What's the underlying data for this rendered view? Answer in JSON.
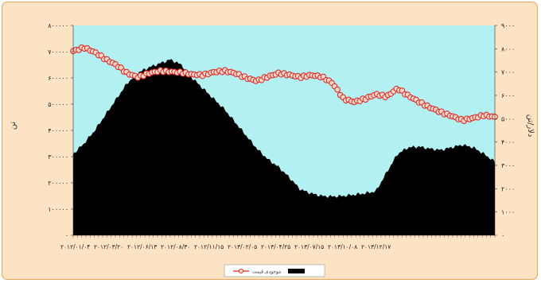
{
  "chart_data": {
    "type": "area",
    "left_axis": {
      "label": "تن",
      "ylim": [
        0,
        800000
      ],
      "ticks": [
        "۰",
        "۱۰۰۰۰۰",
        "۲۰۰۰۰۰",
        "۳۰۰۰۰۰",
        "۴۰۰۰۰۰",
        "۵۰۰۰۰۰",
        "۶۰۰۰۰۰",
        "۷۰۰۰۰۰",
        "۸۰۰۰۰۰"
      ],
      "tick_values": [
        0,
        100000,
        200000,
        300000,
        400000,
        500000,
        600000,
        700000,
        800000
      ]
    },
    "right_axis": {
      "label": "دلار/تن",
      "ylim": [
        0,
        9000
      ],
      "ticks": [
        "۰",
        "۱۰۰۰",
        "۲۰۰۰",
        "۳۰۰۰",
        "۴۰۰۰",
        "۵۰۰۰",
        "۶۰۰۰",
        "۷۰۰۰",
        "۸۰۰۰",
        "۹۰۰۰"
      ],
      "tick_values": [
        0,
        1000,
        2000,
        3000,
        4000,
        5000,
        6000,
        7000,
        8000,
        9000
      ]
    },
    "x_tick_labels": [
      "۲۰۱۲/۰۱/۰۴",
      "۲۰۱۲/۰۳/۲۰",
      "۲۰۱۲/۰۶/۱۳",
      "۲۰۱۲/۰۸/۳۰",
      "۲۰۱۲/۱۱/۱۵",
      "۲۰۱۳/۰۲/۰۵",
      "۲۰۱۳/۰۴/۲۵",
      "۲۰۱۳/۰۷/۱۵",
      "۲۰۱۳/۱۰/۰۸",
      "۲۰۱۳/۱۲/۱۷"
    ],
    "series": [
      {
        "name": "موجودی",
        "kind": "area",
        "axis": "left",
        "color": "#000000",
        "values": [
          310000,
          350000,
          400000,
          460000,
          520000,
          580000,
          620000,
          640000,
          655000,
          670000,
          650000,
          600000,
          560000,
          520000,
          480000,
          430000,
          380000,
          330000,
          290000,
          260000,
          220000,
          175000,
          160000,
          150000,
          148000,
          150000,
          155000,
          160000,
          168000,
          240000,
          310000,
          335000,
          338000,
          330000,
          325000,
          335000,
          345000,
          335000,
          310000,
          280000
        ]
      },
      {
        "name": "قیمت",
        "kind": "line-marker",
        "axis": "right",
        "color": "#e02020",
        "marker_fill": "#f4d9c9",
        "values": [
          7900,
          8050,
          7850,
          7550,
          7300,
          6950,
          6780,
          6950,
          7050,
          7020,
          6980,
          6900,
          6870,
          7000,
          7050,
          6950,
          6750,
          6620,
          6800,
          6950,
          6880,
          6780,
          6870,
          6800,
          6520,
          5850,
          5720,
          5850,
          6050,
          5950,
          6300,
          5980,
          5720,
          5480,
          5280,
          5120,
          4930,
          5030,
          5150,
          5070
        ]
      }
    ],
    "legend": {
      "position": "bottom-center"
    },
    "plot_background": "#b3f0f2",
    "grid": false
  }
}
